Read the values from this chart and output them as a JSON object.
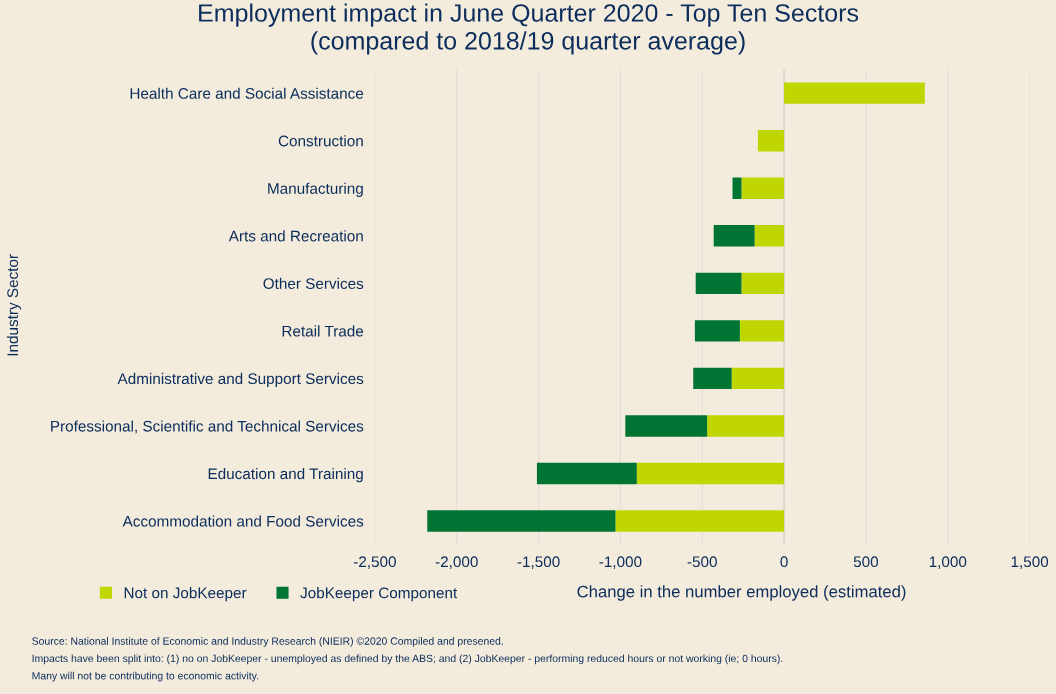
{
  "chart_data": {
    "type": "bar",
    "orientation": "horizontal",
    "stacked": true,
    "title": "Employment impact in June Quarter 2020 - Top Ten Sectors\n(compared to 2018/19 quarter average)",
    "xlabel": "Change in the number employed (estimated)",
    "ylabel": "Industry Sector",
    "categories": [
      "Health Care and Social Assistance",
      "Construction",
      "Manufacturing",
      "Arts and Recreation",
      "Other Services",
      "Retail Trade",
      "Administrative and Support Services",
      "Professional, Scientific and Technical Services",
      "Education and Training",
      "Accommodation and Food Services"
    ],
    "series": [
      {
        "name": "Not on JobKeeper",
        "color": "#c0d600",
        "values": [
          860,
          -160,
          -260,
          -180,
          -260,
          -270,
          -320,
          -470,
          -900,
          -1030
        ]
      },
      {
        "name": "JobKeeper Component",
        "color": "#007533",
        "values": [
          0,
          0,
          -55,
          -250,
          -280,
          -275,
          -235,
          -500,
          -610,
          -1150
        ]
      }
    ],
    "xlim": [
      -2500,
      1500
    ],
    "xticks": [
      {
        "value": -2500,
        "label": "-2,500"
      },
      {
        "value": -2000,
        "label": "-2,000"
      },
      {
        "value": -1500,
        "label": "-1,500"
      },
      {
        "value": -1000,
        "label": "-1,000"
      },
      -500,
      0,
      500,
      {
        "value": 1000,
        "label": "1,000"
      },
      {
        "value": 1500,
        "label": "1,500"
      }
    ],
    "grid": "x",
    "legend": "bottom left",
    "annotations": [
      "Source: National Institute of Economic and Industry Research (NIEIR) ©2020 Compiled and presened.",
      "Impacts have been split into: (1) no on JobKeeper - unemployed as defined by the ABS; and (2) JobKeeper - performing reduced hours or not working (ie; 0 hours).",
      "Many will not be contributing to economic activity."
    ]
  }
}
